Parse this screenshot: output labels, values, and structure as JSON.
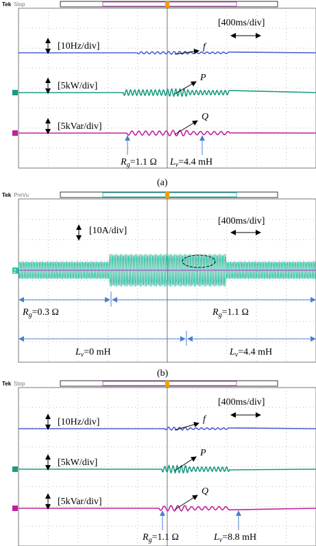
{
  "panels": [
    {
      "tek": "Tek",
      "status": "Stop",
      "timebase": "[400ms/div]",
      "scales": [
        "[10Hz/div]",
        "[5kW/div]",
        "[5kVar/div]"
      ],
      "traces": [
        "f",
        "P",
        "Q"
      ],
      "annotations": [
        {
          "symbol": "R",
          "sub": "g",
          "text": "=1.1 Ω"
        },
        {
          "symbol": "L",
          "sub": "v",
          "text": "=4.4 mH"
        }
      ],
      "caption": "(a)"
    },
    {
      "tek": "Tek",
      "status": "PreVu",
      "timebase": "[400ms/div]",
      "scales": [
        "[10A/div]"
      ],
      "channel": "2",
      "annotations": [
        {
          "symbol": "R",
          "sub": "g",
          "text": "=0.3 Ω"
        },
        {
          "symbol": "R",
          "sub": "g",
          "text": "=1.1 Ω"
        },
        {
          "symbol": "L",
          "sub": "v",
          "text": "=0 mH"
        },
        {
          "symbol": "L",
          "sub": "v",
          "text": "=4.4 mH"
        }
      ],
      "caption": "(b)"
    },
    {
      "tek": "Tek",
      "status": "Stop",
      "timebase": "[400ms/div]",
      "scales": [
        "[10Hz/div]",
        "[5kW/div]",
        "[5kVar/div]"
      ],
      "traces": [
        "f",
        "P",
        "Q"
      ],
      "annotations": [
        {
          "symbol": "R",
          "sub": "g",
          "text": "=1.1 Ω"
        },
        {
          "symbol": "L",
          "sub": "v",
          "text": "=8.8 mH"
        }
      ]
    }
  ]
}
